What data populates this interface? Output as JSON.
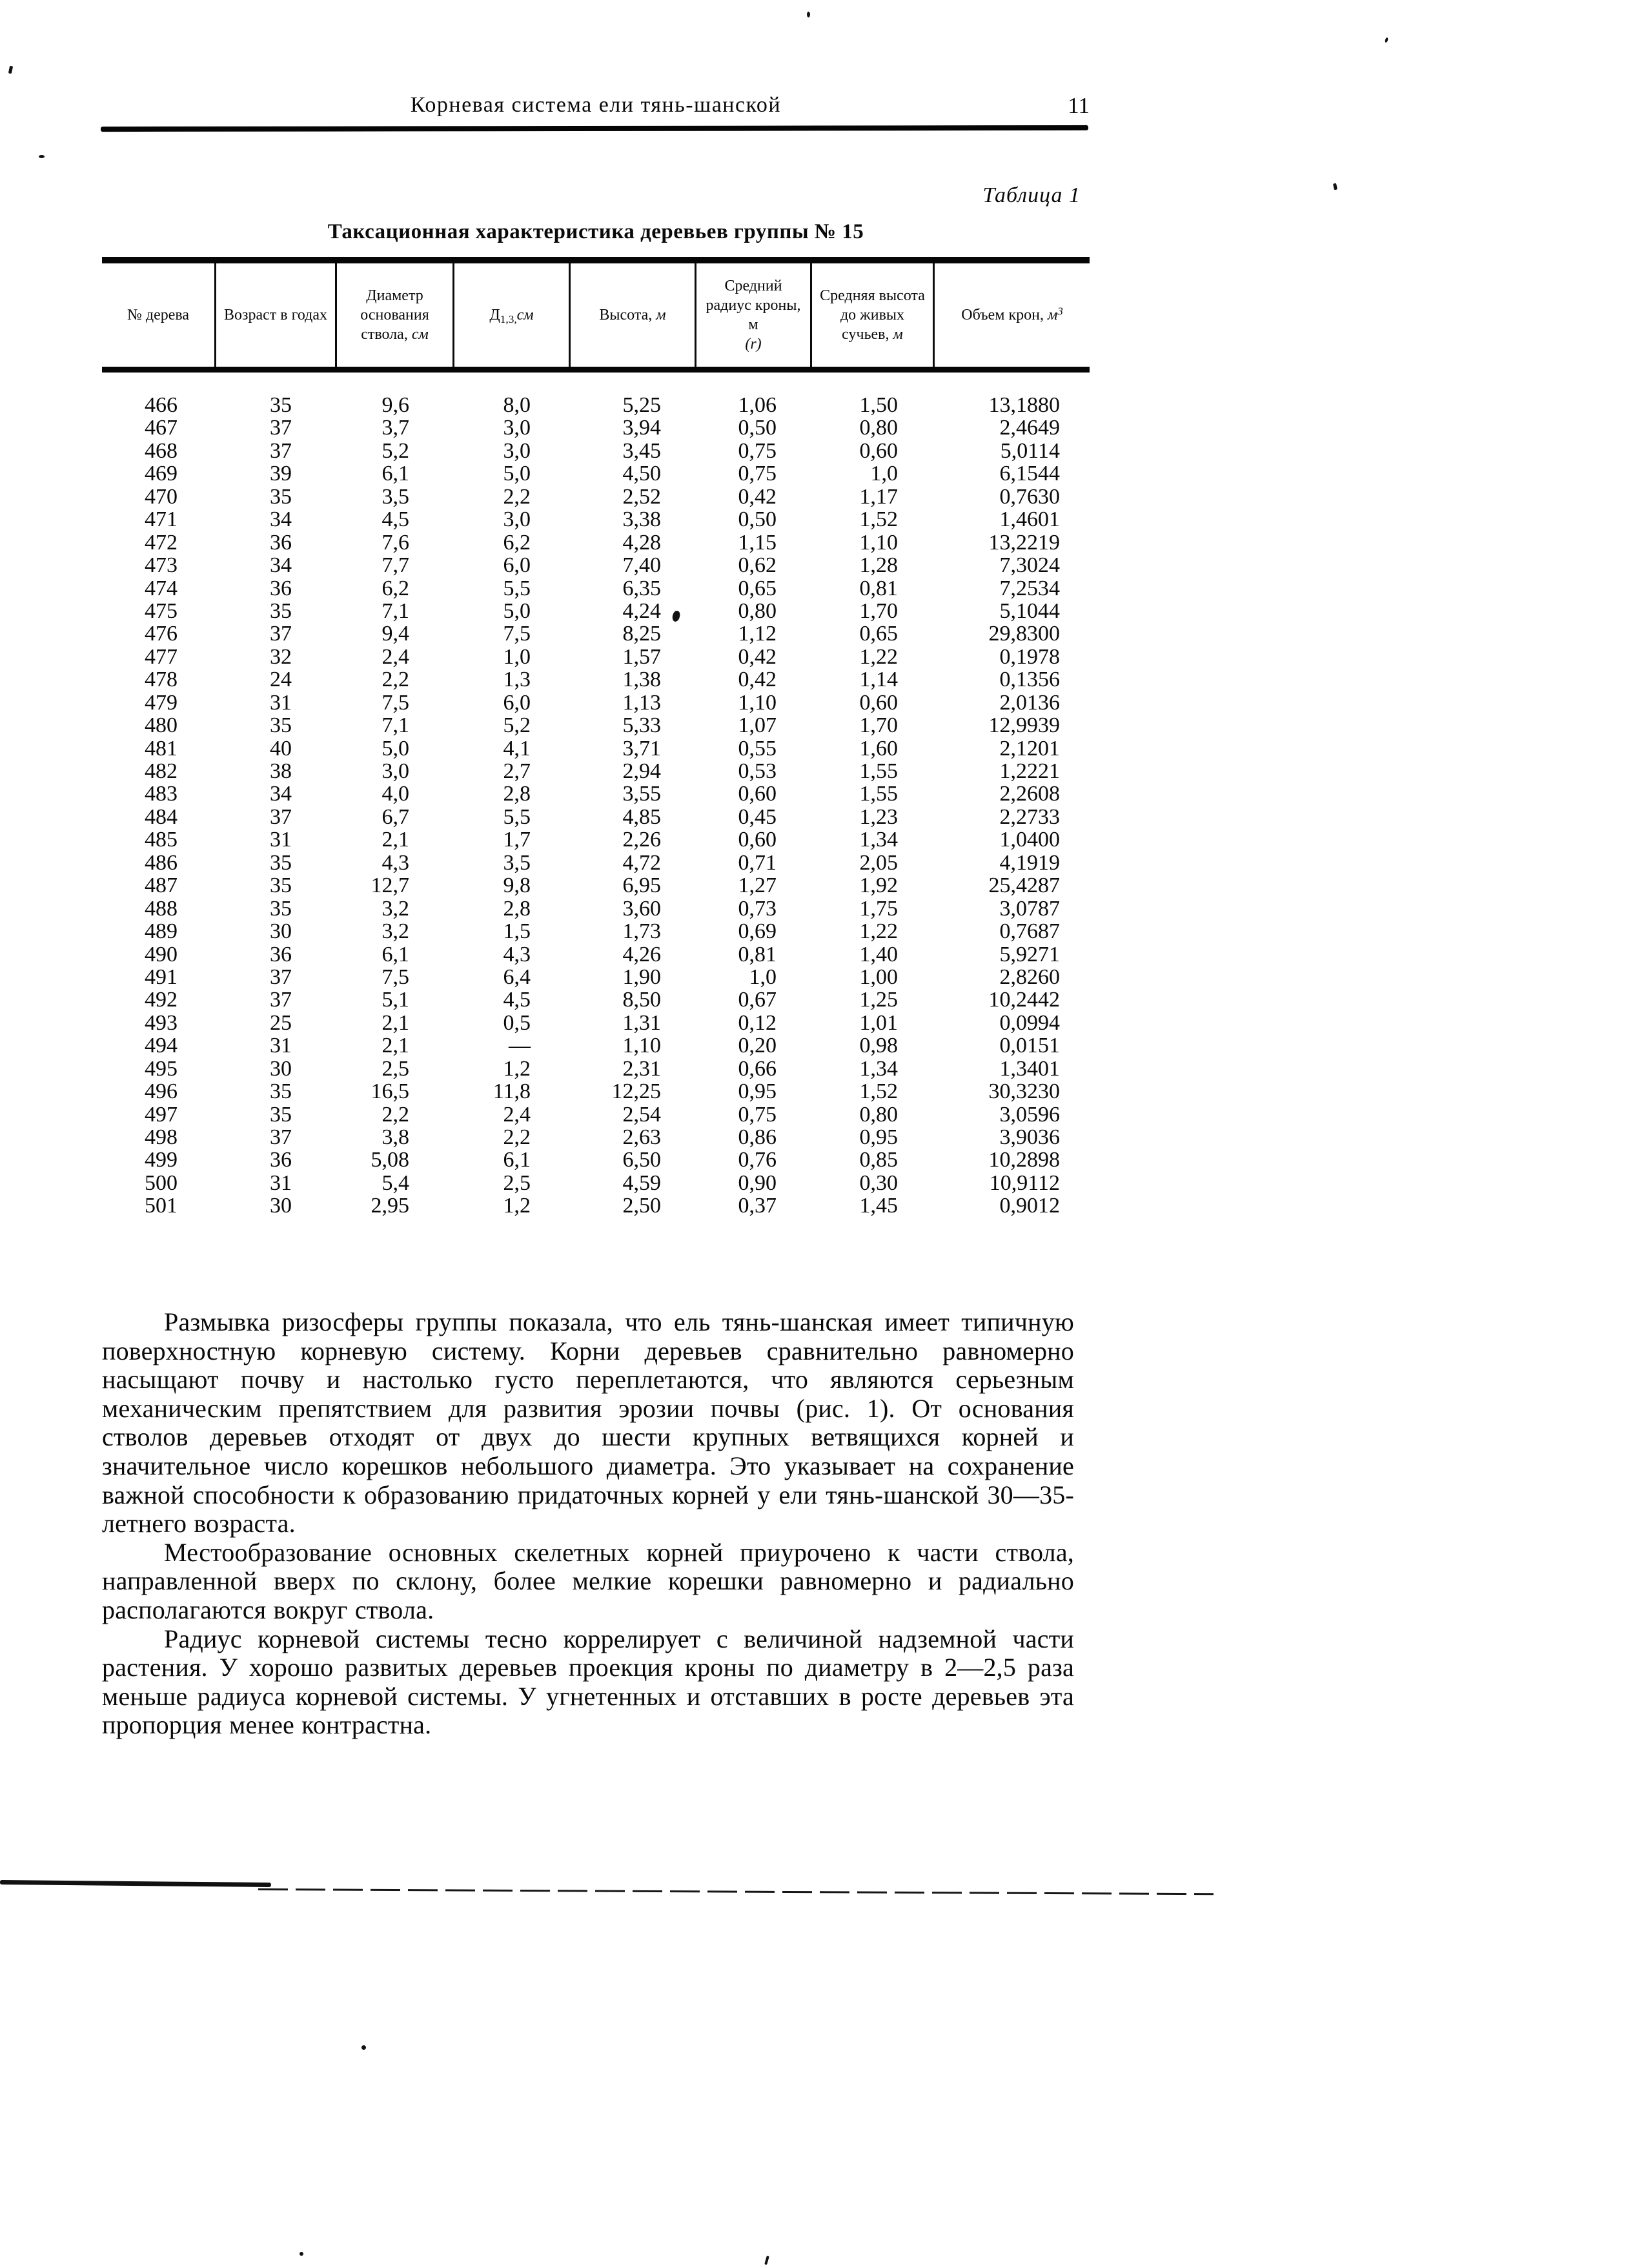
{
  "page": {
    "running_head": "Корневая система ели тянь-шанской",
    "page_number": "11",
    "table_caption": "Таблица 1",
    "table_title": "Таксационная характеристика деревьев группы № 15"
  },
  "table": {
    "columns": [
      {
        "label": "№ дерева"
      },
      {
        "label": "Возраст в годах"
      },
      {
        "label": "Диаметр основания ствола,",
        "unit": "см"
      },
      {
        "label": "Д",
        "sub": "1,3,",
        "unit": "см"
      },
      {
        "label": "Высота,",
        "unit": "м"
      },
      {
        "label": "Средний радиус кроны, м",
        "note": "(r)"
      },
      {
        "label": "Средняя высота до живых сучьев,",
        "unit": "м"
      },
      {
        "label": "Объем крон,",
        "unit": "м",
        "unit_sup": "3"
      }
    ],
    "rows": [
      [
        "466",
        "35",
        "9,6",
        "8,0",
        "5,25",
        "1,06",
        "1,50",
        "13,1880"
      ],
      [
        "467",
        "37",
        "3,7",
        "3,0",
        "3,94",
        "0,50",
        "0,80",
        "2,4649"
      ],
      [
        "468",
        "37",
        "5,2",
        "3,0",
        "3,45",
        "0,75",
        "0,60",
        "5,0114"
      ],
      [
        "469",
        "39",
        "6,1",
        "5,0",
        "4,50",
        "0,75",
        "1,0",
        "6,1544"
      ],
      [
        "470",
        "35",
        "3,5",
        "2,2",
        "2,52",
        "0,42",
        "1,17",
        "0,7630"
      ],
      [
        "471",
        "34",
        "4,5",
        "3,0",
        "3,38",
        "0,50",
        "1,52",
        "1,4601"
      ],
      [
        "472",
        "36",
        "7,6",
        "6,2",
        "4,28",
        "1,15",
        "1,10",
        "13,2219"
      ],
      [
        "473",
        "34",
        "7,7",
        "6,0",
        "7,40",
        "0,62",
        "1,28",
        "7,3024"
      ],
      [
        "474",
        "36",
        "6,2",
        "5,5",
        "6,35",
        "0,65",
        "0,81",
        "7,2534"
      ],
      [
        "475",
        "35",
        "7,1",
        "5,0",
        "4,24",
        "0,80",
        "1,70",
        "5,1044"
      ],
      [
        "476",
        "37",
        "9,4",
        "7,5",
        "8,25",
        "1,12",
        "0,65",
        "29,8300"
      ],
      [
        "477",
        "32",
        "2,4",
        "1,0",
        "1,57",
        "0,42",
        "1,22",
        "0,1978"
      ],
      [
        "478",
        "24",
        "2,2",
        "1,3",
        "1,38",
        "0,42",
        "1,14",
        "0,1356"
      ],
      [
        "479",
        "31",
        "7,5",
        "6,0",
        "1,13",
        "1,10",
        "0,60",
        "2,0136"
      ],
      [
        "480",
        "35",
        "7,1",
        "5,2",
        "5,33",
        "1,07",
        "1,70",
        "12,9939"
      ],
      [
        "481",
        "40",
        "5,0",
        "4,1",
        "3,71",
        "0,55",
        "1,60",
        "2,1201"
      ],
      [
        "482",
        "38",
        "3,0",
        "2,7",
        "2,94",
        "0,53",
        "1,55",
        "1,2221"
      ],
      [
        "483",
        "34",
        "4,0",
        "2,8",
        "3,55",
        "0,60",
        "1,55",
        "2,2608"
      ],
      [
        "484",
        "37",
        "6,7",
        "5,5",
        "4,85",
        "0,45",
        "1,23",
        "2,2733"
      ],
      [
        "485",
        "31",
        "2,1",
        "1,7",
        "2,26",
        "0,60",
        "1,34",
        "1,0400"
      ],
      [
        "486",
        "35",
        "4,3",
        "3,5",
        "4,72",
        "0,71",
        "2,05",
        "4,1919"
      ],
      [
        "487",
        "35",
        "12,7",
        "9,8",
        "6,95",
        "1,27",
        "1,92",
        "25,4287"
      ],
      [
        "488",
        "35",
        "3,2",
        "2,8",
        "3,60",
        "0,73",
        "1,75",
        "3,0787"
      ],
      [
        "489",
        "30",
        "3,2",
        "1,5",
        "1,73",
        "0,69",
        "1,22",
        "0,7687"
      ],
      [
        "490",
        "36",
        "6,1",
        "4,3",
        "4,26",
        "0,81",
        "1,40",
        "5,9271"
      ],
      [
        "491",
        "37",
        "7,5",
        "6,4",
        "1,90",
        "1,0",
        "1,00",
        "2,8260"
      ],
      [
        "492",
        "37",
        "5,1",
        "4,5",
        "8,50",
        "0,67",
        "1,25",
        "10,2442"
      ],
      [
        "493",
        "25",
        "2,1",
        "0,5",
        "1,31",
        "0,12",
        "1,01",
        "0,0994"
      ],
      [
        "494",
        "31",
        "2,1",
        "—",
        "1,10",
        "0,20",
        "0,98",
        "0,0151"
      ],
      [
        "495",
        "30",
        "2,5",
        "1,2",
        "2,31",
        "0,66",
        "1,34",
        "1,3401"
      ],
      [
        "496",
        "35",
        "16,5",
        "11,8",
        "12,25",
        "0,95",
        "1,52",
        "30,3230"
      ],
      [
        "497",
        "35",
        "2,2",
        "2,4",
        "2,54",
        "0,75",
        "0,80",
        "3,0596"
      ],
      [
        "498",
        "37",
        "3,8",
        "2,2",
        "2,63",
        "0,86",
        "0,95",
        "3,9036"
      ],
      [
        "499",
        "36",
        "5,08",
        "6,1",
        "6,50",
        "0,76",
        "0,85",
        "10,2898"
      ],
      [
        "500",
        "31",
        "5,4",
        "2,5",
        "4,59",
        "0,90",
        "0,30",
        "10,9112"
      ],
      [
        "501",
        "30",
        "2,95",
        "1,2",
        "2,50",
        "0,37",
        "1,45",
        "0,9012"
      ]
    ]
  },
  "paragraphs": [
    "Размывка ризосферы группы показала, что ель тянь-шанская имеет типичную поверхностную корневую систему. Корни деревьев сравнительно равномерно насыщают почву и настолько густо переплетаются, что являются серьезным механическим препятствием для развития эрозии почвы (рис. 1). От основания стволов деревьев отходят от двух до шести крупных ветвящихся корней и значительное число корешков небольшого диаметра. Это указывает на сохранение важной способности к образованию придаточных корней у ели тянь-шанской 30—35-летнего возраста.",
    "Местообразование основных скелетных корней приурочено к части ствола, направленной вверх по склону, более мелкие корешки равномерно и радиально располагаются вокруг ствола.",
    "Радиус корневой системы тесно коррелирует с величиной надземной части растения. У хорошо развитых деревьев проекция кроны по диаметру в 2—2,5 раза меньше радиуса корневой системы. У угнетенных и отставших в росте деревьев эта пропорция менее контрастна."
  ]
}
